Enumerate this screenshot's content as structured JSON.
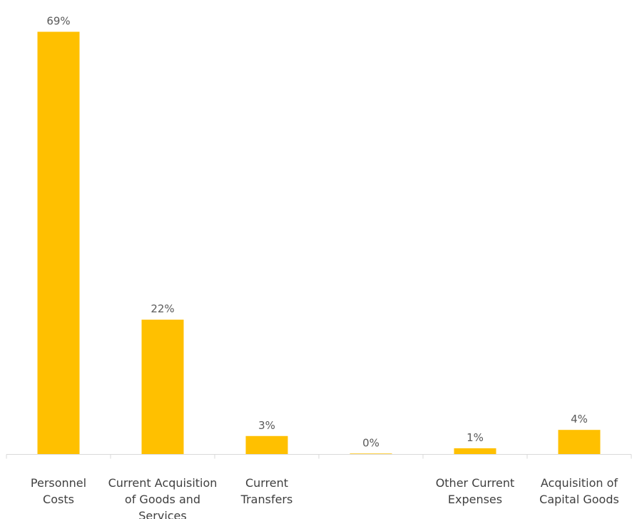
{
  "chart_data": {
    "type": "bar",
    "categories": [
      [
        "Personnel",
        "Costs"
      ],
      [
        "Current Acquisition",
        "of Goods and",
        "Services"
      ],
      [
        "Current",
        "Transfers"
      ],
      [
        ""
      ],
      [
        "Other Current",
        "Expenses"
      ],
      [
        "Acquisition of",
        "Capital Goods"
      ]
    ],
    "values": [
      69,
      22,
      3,
      0,
      1,
      4
    ],
    "data_labels": [
      "69%",
      "22%",
      "3%",
      "0%",
      "1%",
      "4%"
    ],
    "ylim": [
      0,
      69
    ],
    "grid": false,
    "bar_color": "#FFC000"
  }
}
